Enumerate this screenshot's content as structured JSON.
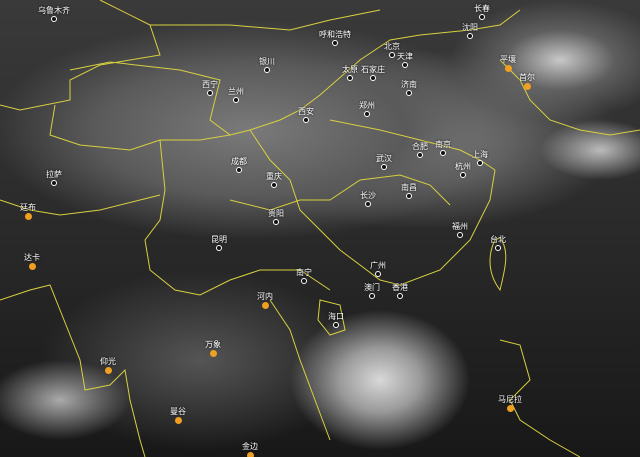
{
  "map": {
    "border_color": "#d8d040",
    "domestic_marker_color": "#ffffff",
    "foreign_marker_color": "#f0a020",
    "cities": [
      {
        "name": "乌鲁木齐",
        "type": "domestic"
      },
      {
        "name": "银川",
        "type": "domestic"
      },
      {
        "name": "西宁",
        "type": "domestic"
      },
      {
        "name": "兰州",
        "type": "domestic"
      },
      {
        "name": "西安",
        "type": "domestic"
      },
      {
        "name": "成都",
        "type": "domestic"
      },
      {
        "name": "重庆",
        "type": "domestic"
      },
      {
        "name": "贵阳",
        "type": "domestic"
      },
      {
        "name": "拉萨",
        "type": "domestic"
      },
      {
        "name": "廷布",
        "type": "foreign"
      },
      {
        "name": "长春",
        "type": "domestic"
      },
      {
        "name": "沈阳",
        "type": "domestic"
      },
      {
        "name": "呼和浩特",
        "type": "domestic"
      },
      {
        "name": "北京",
        "type": "domestic"
      },
      {
        "name": "天津",
        "type": "domestic"
      },
      {
        "name": "太原",
        "type": "domestic"
      },
      {
        "name": "石家庄",
        "type": "domestic"
      },
      {
        "name": "济南",
        "type": "domestic"
      },
      {
        "name": "郑州",
        "type": "domestic"
      },
      {
        "name": "合肥",
        "type": "domestic"
      },
      {
        "name": "南京",
        "type": "domestic"
      },
      {
        "name": "武汉",
        "type": "domestic"
      },
      {
        "name": "上海",
        "type": "domestic"
      },
      {
        "name": "杭州",
        "type": "domestic"
      },
      {
        "name": "南昌",
        "type": "domestic"
      },
      {
        "name": "长沙",
        "type": "domestic"
      },
      {
        "name": "福州",
        "type": "domestic"
      },
      {
        "name": "平壤",
        "type": "foreign"
      },
      {
        "name": "首尔",
        "type": "foreign"
      },
      {
        "name": "达卡",
        "type": "foreign"
      },
      {
        "name": "昆明",
        "type": "domestic"
      },
      {
        "name": "南宁",
        "type": "domestic"
      },
      {
        "name": "河内",
        "type": "foreign"
      },
      {
        "name": "万象",
        "type": "foreign"
      },
      {
        "name": "仰光",
        "type": "foreign"
      },
      {
        "name": "曼谷",
        "type": "foreign"
      },
      {
        "name": "金边",
        "type": "foreign"
      },
      {
        "name": "广州",
        "type": "domestic"
      },
      {
        "name": "澳门",
        "type": "domestic"
      },
      {
        "name": "香港",
        "type": "domestic"
      },
      {
        "name": "海口",
        "type": "domestic"
      },
      {
        "name": "台北",
        "type": "domestic"
      },
      {
        "name": "马尼拉",
        "type": "foreign"
      }
    ]
  }
}
